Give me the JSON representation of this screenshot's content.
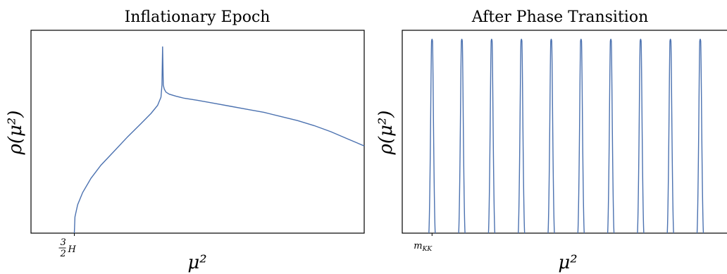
{
  "chart_data": [
    {
      "type": "line",
      "title": "Inflationary Epoch",
      "xlabel": "μ²",
      "ylabel": "ρ(μ²)",
      "xlim": [
        0,
        10
      ],
      "ylim": [
        0,
        10
      ],
      "tick_labels": {
        "x": [
          "3/2 H"
        ]
      },
      "grid": false,
      "legend": "none",
      "series": [
        {
          "x": [
            1.3,
            1.32,
            1.4,
            1.55,
            1.8,
            2.1,
            2.5,
            2.9,
            3.3,
            3.6,
            3.8,
            3.9,
            3.93,
            3.95,
            3.97,
            4.0,
            4.05,
            4.15,
            4.35,
            4.6,
            5.0,
            5.5,
            6.0,
            6.5,
            7.0,
            7.5,
            8.0,
            8.5,
            9.0,
            9.5,
            10.0
          ],
          "y": [
            0.0,
            0.8,
            1.4,
            2.0,
            2.7,
            3.35,
            4.05,
            4.75,
            5.4,
            5.9,
            6.3,
            6.7,
            7.3,
            9.2,
            7.3,
            7.1,
            6.95,
            6.85,
            6.75,
            6.65,
            6.55,
            6.4,
            6.25,
            6.1,
            5.95,
            5.75,
            5.55,
            5.3,
            5.0,
            4.65,
            4.3
          ]
        }
      ]
    },
    {
      "type": "line",
      "title": "After Phase Transition",
      "xlabel": "μ²",
      "ylabel": "ρ(μ²)",
      "xlim": [
        0,
        10
      ],
      "ylim": [
        0,
        10
      ],
      "tick_labels": {
        "x": [
          "m_KK"
        ]
      },
      "grid": false,
      "legend": "none",
      "peak_positions": [
        0.9,
        1.8,
        2.7,
        3.6,
        4.5,
        5.4,
        6.3,
        7.2,
        8.1,
        9.0
      ],
      "peak_height": 9.6
    }
  ]
}
